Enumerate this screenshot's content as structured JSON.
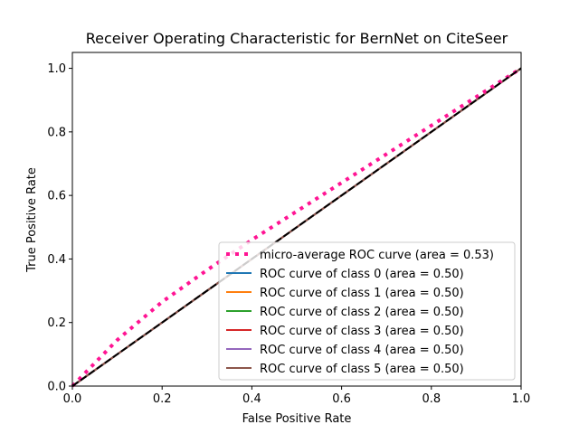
{
  "chart_data": {
    "type": "line",
    "title": "Receiver Operating Characteristic for BernNet on CiteSeer",
    "xlabel": "False Positive Rate",
    "ylabel": "True Positive Rate",
    "xlim": [
      0.0,
      1.0
    ],
    "ylim": [
      0.0,
      1.05
    ],
    "x_ticks": [
      "0.0",
      "0.2",
      "0.4",
      "0.6",
      "0.8",
      "1.0"
    ],
    "y_ticks": [
      "0.0",
      "0.2",
      "0.4",
      "0.6",
      "0.8",
      "1.0"
    ],
    "grid": false,
    "legend_position": "lower-right",
    "series": [
      {
        "name": "micro-average ROC curve (area = 0.53)",
        "color": "#ff1493",
        "style": "dotted",
        "x": [
          0.0,
          0.1,
          0.2,
          0.3,
          0.4,
          0.5,
          0.6,
          0.7,
          0.8,
          0.9,
          1.0
        ],
        "y": [
          0.0,
          0.145,
          0.265,
          0.365,
          0.46,
          0.55,
          0.64,
          0.73,
          0.82,
          0.91,
          1.0
        ]
      },
      {
        "name": "ROC curve of class 0 (area = 0.50)",
        "color": "#1f77b4",
        "style": "solid",
        "x": [
          0.0,
          1.0
        ],
        "y": [
          0.0,
          1.0
        ]
      },
      {
        "name": "ROC curve of class 1 (area = 0.50)",
        "color": "#ff7f0e",
        "style": "solid",
        "x": [
          0.0,
          1.0
        ],
        "y": [
          0.0,
          1.0
        ]
      },
      {
        "name": "ROC curve of class 2 (area = 0.50)",
        "color": "#2ca02c",
        "style": "solid",
        "x": [
          0.0,
          1.0
        ],
        "y": [
          0.0,
          1.0
        ]
      },
      {
        "name": "ROC curve of class 3 (area = 0.50)",
        "color": "#d62728",
        "style": "solid",
        "x": [
          0.0,
          1.0
        ],
        "y": [
          0.0,
          1.0
        ]
      },
      {
        "name": "ROC curve of class 4 (area = 0.50)",
        "color": "#9467bd",
        "style": "solid",
        "x": [
          0.0,
          1.0
        ],
        "y": [
          0.0,
          1.0
        ]
      },
      {
        "name": "ROC curve of class 5 (area = 0.50)",
        "color": "#8c564b",
        "style": "solid",
        "x": [
          0.0,
          1.0
        ],
        "y": [
          0.0,
          1.0
        ]
      }
    ],
    "reference_line": {
      "color": "#000000",
      "style": "dashed",
      "x": [
        0.0,
        1.0
      ],
      "y": [
        0.0,
        1.0
      ]
    }
  }
}
